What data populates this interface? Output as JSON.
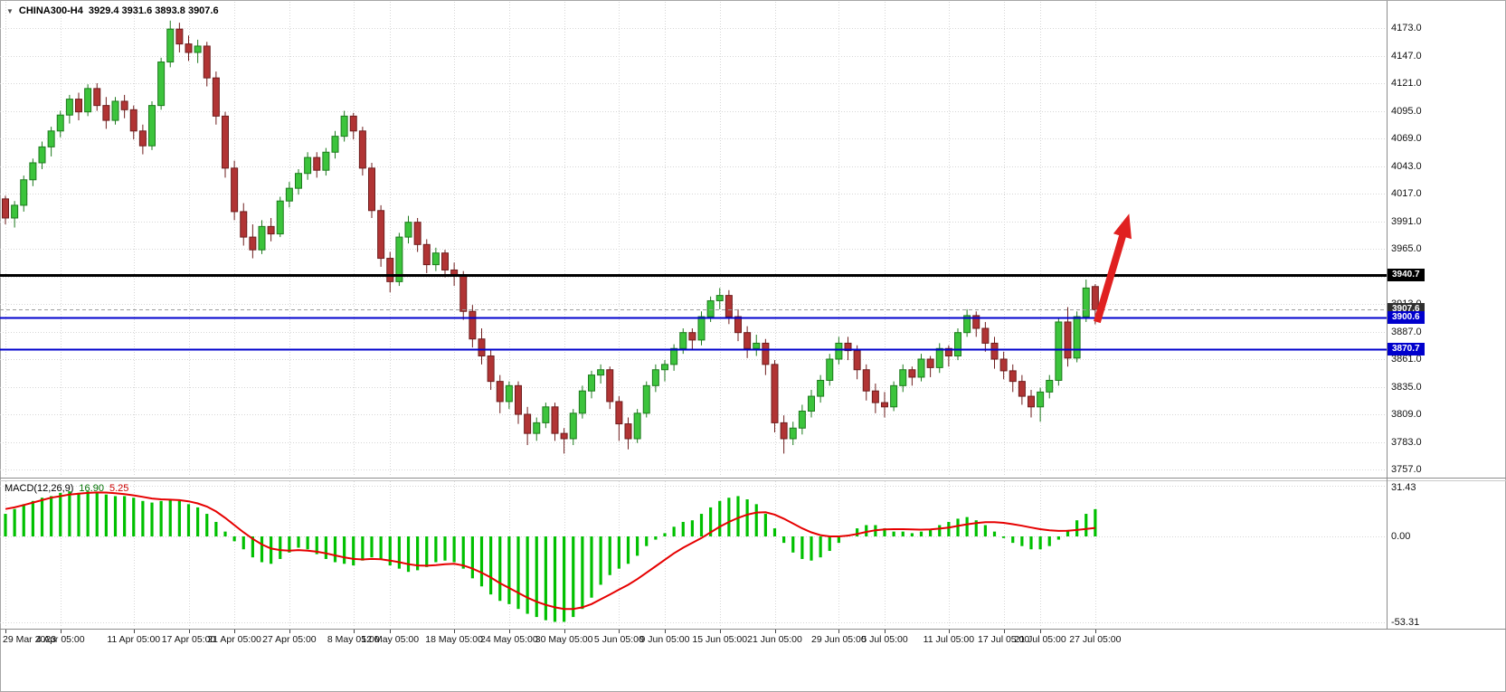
{
  "header": {
    "symbol_timeframe": "CHINA300-H4",
    "ohlc_readout": "3929.4 3931.6 3893.8 3907.6",
    "dropdown_icon": "▼"
  },
  "macd_header": {
    "label": "MACD(12,26,9)",
    "main_value": "16.90",
    "signal_value": "5.25"
  },
  "price_axis": {
    "labels": [
      "4173.0",
      "4147.0",
      "4121.0",
      "4095.0",
      "4069.0",
      "4043.0",
      "4017.0",
      "3991.0",
      "3965.0",
      "3913.0",
      "3887.0",
      "3861.0",
      "3835.0",
      "3809.0",
      "3783.0",
      "3757.0"
    ],
    "hidden_grid_levels": [
      3939.0
    ],
    "badges": [
      {
        "text": "3940.7",
        "price": 3940.7,
        "bg": "#000000",
        "fg": "#ffffff"
      },
      {
        "text": "3907.6",
        "price": 3907.6,
        "bg": "#2f2f2f",
        "fg": "#ffffff"
      },
      {
        "text": "3900.6",
        "price": 3900.6,
        "bg": "#0000cd",
        "fg": "#ffffff"
      },
      {
        "text": "3870.7",
        "price": 3870.7,
        "bg": "#0000cd",
        "fg": "#ffffff"
      }
    ]
  },
  "macd_axis": {
    "labels": [
      {
        "text": "31.43",
        "value": 31.43
      },
      {
        "text": "0.00",
        "value": 0
      },
      {
        "text": "-53.31",
        "value": -53.31
      }
    ]
  },
  "time_axis": {
    "labels": [
      {
        "text": "29 Mar 2023",
        "i": 0
      },
      {
        "text": "4 Apr 05:00",
        "i": 6
      },
      {
        "text": "11 Apr 05:00",
        "i": 14
      },
      {
        "text": "17 Apr 05:00",
        "i": 20
      },
      {
        "text": "21 Apr 05:00",
        "i": 25
      },
      {
        "text": "27 Apr 05:00",
        "i": 31
      },
      {
        "text": "8 May 05:00",
        "i": 38
      },
      {
        "text": "12 May 05:00",
        "i": 42
      },
      {
        "text": "18 May 05:00",
        "i": 49
      },
      {
        "text": "24 May 05:00",
        "i": 55
      },
      {
        "text": "30 May 05:00",
        "i": 61
      },
      {
        "text": "5 Jun 05:00",
        "i": 67
      },
      {
        "text": "9 Jun 05:00",
        "i": 72
      },
      {
        "text": "15 Jun 05:00",
        "i": 78
      },
      {
        "text": "21 Jun 05:00",
        "i": 84
      },
      {
        "text": "29 Jun 05:00",
        "i": 91
      },
      {
        "text": "5 Jul 05:00",
        "i": 96
      },
      {
        "text": "11 Jul 05:00",
        "i": 103
      },
      {
        "text": "17 Jul 05:00",
        "i": 109
      },
      {
        "text": "21 Jul 05:00",
        "i": 113
      },
      {
        "text": "27 Jul 05:00",
        "i": 119
      }
    ]
  },
  "lines": [
    {
      "name": "resistance-hline",
      "price": 3940.7,
      "color": "#000000",
      "width": 3,
      "dash": ""
    },
    {
      "name": "bid-price-line",
      "price": 3907.6,
      "color": "#9b9b9b",
      "width": 1,
      "dash": "4,3"
    },
    {
      "name": "support-hline-1",
      "price": 3900.6,
      "color": "#0000cd",
      "width": 2,
      "dash": ""
    },
    {
      "name": "support-hline-2",
      "price": 3870.7,
      "color": "#0000cd",
      "width": 2,
      "dash": ""
    }
  ],
  "annotations": [
    {
      "type": "up-arrow",
      "color": "#e02020",
      "tail_bar": 119.2,
      "tail_price": 3896,
      "head_bar": 122.7,
      "head_price": 3998
    }
  ],
  "colors": {
    "bull_fill": "#3cc43c",
    "bull_stroke": "#1d7a1d",
    "bear_fill": "#b13434",
    "bear_stroke": "#6e1d1d",
    "grid": "#d6d6d6",
    "macd_hist": "#00c000",
    "macd_signal": "#e60000",
    "axis_text": "#111111",
    "separator": "#8c8c8c",
    "tick": "#444444"
  },
  "chart_data": {
    "type": "candlestick",
    "title": "CHINA300-H4",
    "symbol": "CHINA300",
    "timeframe": "H4",
    "last_bar": {
      "open": 3929.4,
      "high": 3931.6,
      "low": 3893.8,
      "close": 3907.6
    },
    "price_axis_range": [
      3757.0,
      4173.0
    ],
    "grid_step": 26.0,
    "candles": [
      [
        4012,
        4015,
        3988,
        3994
      ],
      [
        3994,
        4010,
        3985,
        4006
      ],
      [
        4006,
        4034,
        4000,
        4030
      ],
      [
        4030,
        4050,
        4024,
        4046
      ],
      [
        4046,
        4066,
        4040,
        4061
      ],
      [
        4061,
        4080,
        4052,
        4076
      ],
      [
        4076,
        4095,
        4070,
        4091
      ],
      [
        4091,
        4110,
        4083,
        4106
      ],
      [
        4106,
        4112,
        4086,
        4094
      ],
      [
        4094,
        4120,
        4090,
        4116
      ],
      [
        4116,
        4121,
        4095,
        4100
      ],
      [
        4100,
        4108,
        4078,
        4086
      ],
      [
        4086,
        4108,
        4082,
        4104
      ],
      [
        4104,
        4110,
        4088,
        4096
      ],
      [
        4096,
        4100,
        4068,
        4076
      ],
      [
        4076,
        4082,
        4054,
        4062
      ],
      [
        4062,
        4104,
        4058,
        4100
      ],
      [
        4100,
        4145,
        4096,
        4141
      ],
      [
        4141,
        4180,
        4136,
        4172
      ],
      [
        4172,
        4178,
        4150,
        4158
      ],
      [
        4158,
        4166,
        4142,
        4150
      ],
      [
        4150,
        4162,
        4140,
        4156
      ],
      [
        4156,
        4160,
        4118,
        4126
      ],
      [
        4126,
        4132,
        4082,
        4090
      ],
      [
        4090,
        4094,
        4032,
        4041
      ],
      [
        4041,
        4048,
        3992,
        4000
      ],
      [
        4000,
        4008,
        3968,
        3976
      ],
      [
        3976,
        3988,
        3956,
        3964
      ],
      [
        3964,
        3992,
        3960,
        3986
      ],
      [
        3986,
        3994,
        3972,
        3979
      ],
      [
        3979,
        4014,
        3976,
        4010
      ],
      [
        4010,
        4028,
        4004,
        4022
      ],
      [
        4022,
        4040,
        4016,
        4036
      ],
      [
        4036,
        4056,
        4030,
        4051
      ],
      [
        4051,
        4056,
        4032,
        4039
      ],
      [
        4039,
        4060,
        4034,
        4056
      ],
      [
        4056,
        4076,
        4050,
        4071
      ],
      [
        4071,
        4095,
        4066,
        4090
      ],
      [
        4090,
        4093,
        4068,
        4076
      ],
      [
        4076,
        4080,
        4034,
        4041
      ],
      [
        4041,
        4046,
        3994,
        4001
      ],
      [
        4001,
        4006,
        3948,
        3956
      ],
      [
        3956,
        3962,
        3924,
        3934
      ],
      [
        3934,
        3980,
        3930,
        3976
      ],
      [
        3976,
        3996,
        3970,
        3990
      ],
      [
        3990,
        3994,
        3962,
        3969
      ],
      [
        3969,
        3974,
        3942,
        3950
      ],
      [
        3950,
        3966,
        3944,
        3961
      ],
      [
        3961,
        3964,
        3938,
        3945
      ],
      [
        3945,
        3952,
        3930,
        3940
      ],
      [
        3940,
        3944,
        3898,
        3906
      ],
      [
        3906,
        3912,
        3872,
        3880
      ],
      [
        3880,
        3890,
        3856,
        3864
      ],
      [
        3864,
        3870,
        3832,
        3840
      ],
      [
        3840,
        3846,
        3810,
        3821
      ],
      [
        3821,
        3840,
        3814,
        3836
      ],
      [
        3836,
        3840,
        3800,
        3809
      ],
      [
        3809,
        3816,
        3780,
        3791
      ],
      [
        3791,
        3806,
        3784,
        3801
      ],
      [
        3801,
        3820,
        3796,
        3816
      ],
      [
        3816,
        3820,
        3784,
        3791
      ],
      [
        3791,
        3796,
        3772,
        3786
      ],
      [
        3786,
        3814,
        3780,
        3810
      ],
      [
        3810,
        3836,
        3805,
        3831
      ],
      [
        3831,
        3850,
        3824,
        3846
      ],
      [
        3846,
        3856,
        3838,
        3851
      ],
      [
        3851,
        3854,
        3814,
        3821
      ],
      [
        3821,
        3826,
        3784,
        3800
      ],
      [
        3800,
        3806,
        3776,
        3786
      ],
      [
        3786,
        3814,
        3782,
        3810
      ],
      [
        3810,
        3840,
        3806,
        3836
      ],
      [
        3836,
        3856,
        3830,
        3851
      ],
      [
        3851,
        3860,
        3840,
        3856
      ],
      [
        3856,
        3875,
        3850,
        3871
      ],
      [
        3871,
        3890,
        3866,
        3886
      ],
      [
        3886,
        3890,
        3870,
        3879
      ],
      [
        3879,
        3906,
        3874,
        3901
      ],
      [
        3901,
        3920,
        3896,
        3916
      ],
      [
        3916,
        3928,
        3908,
        3921
      ],
      [
        3921,
        3926,
        3894,
        3901
      ],
      [
        3901,
        3908,
        3878,
        3886
      ],
      [
        3886,
        3892,
        3862,
        3871
      ],
      [
        3871,
        3884,
        3864,
        3876
      ],
      [
        3876,
        3880,
        3846,
        3856
      ],
      [
        3856,
        3860,
        3792,
        3801
      ],
      [
        3801,
        3808,
        3772,
        3786
      ],
      [
        3786,
        3802,
        3780,
        3796
      ],
      [
        3796,
        3818,
        3790,
        3812
      ],
      [
        3812,
        3832,
        3806,
        3826
      ],
      [
        3826,
        3846,
        3820,
        3841
      ],
      [
        3841,
        3866,
        3836,
        3861
      ],
      [
        3861,
        3882,
        3856,
        3876
      ],
      [
        3876,
        3882,
        3860,
        3869
      ],
      [
        3869,
        3874,
        3842,
        3851
      ],
      [
        3851,
        3856,
        3822,
        3831
      ],
      [
        3831,
        3838,
        3810,
        3820
      ],
      [
        3820,
        3830,
        3806,
        3816
      ],
      [
        3816,
        3840,
        3812,
        3836
      ],
      [
        3836,
        3856,
        3830,
        3851
      ],
      [
        3851,
        3854,
        3836,
        3844
      ],
      [
        3844,
        3866,
        3840,
        3861
      ],
      [
        3861,
        3864,
        3844,
        3853
      ],
      [
        3853,
        3876,
        3848,
        3871
      ],
      [
        3871,
        3874,
        3854,
        3864
      ],
      [
        3864,
        3890,
        3860,
        3886
      ],
      [
        3886,
        3908,
        3882,
        3902
      ],
      [
        3902,
        3906,
        3882,
        3890
      ],
      [
        3890,
        3896,
        3868,
        3876
      ],
      [
        3876,
        3882,
        3852,
        3861
      ],
      [
        3861,
        3868,
        3842,
        3850
      ],
      [
        3850,
        3856,
        3830,
        3840
      ],
      [
        3840,
        3846,
        3818,
        3826
      ],
      [
        3826,
        3832,
        3806,
        3816
      ],
      [
        3816,
        3834,
        3802,
        3830
      ],
      [
        3830,
        3846,
        3824,
        3841
      ],
      [
        3841,
        3900,
        3836,
        3896
      ],
      [
        3896,
        3910,
        3854,
        3862
      ],
      [
        3862,
        3906,
        3858,
        3901
      ],
      [
        3901,
        3936,
        3896,
        3928
      ],
      [
        3929.4,
        3931.6,
        3893.8,
        3907.6
      ]
    ],
    "macd": {
      "type": "bar+line",
      "params": "12,26,9",
      "range": [
        -53.31,
        31.43
      ],
      "histogram": [
        14,
        17,
        20,
        22,
        24,
        25,
        27,
        28,
        27,
        28,
        27,
        26,
        25,
        25,
        24,
        22,
        21,
        22,
        23,
        22,
        20,
        18,
        14,
        9,
        3,
        -3,
        -8,
        -13,
        -16,
        -17,
        -14,
        -10,
        -7,
        -8,
        -11,
        -14,
        -16,
        -17,
        -18,
        -15,
        -13,
        -14,
        -18,
        -20,
        -22,
        -21,
        -19,
        -16,
        -15,
        -16,
        -20,
        -26,
        -31,
        -36,
        -40,
        -42,
        -45,
        -48,
        -50,
        -52,
        -53,
        -53,
        -50,
        -45,
        -38,
        -30,
        -24,
        -20,
        -17,
        -12,
        -6,
        -2,
        2,
        6,
        9,
        10,
        14,
        18,
        22,
        24,
        25,
        23,
        20,
        14,
        5,
        -4,
        -10,
        -14,
        -15,
        -13,
        -9,
        -4,
        1,
        5,
        7,
        7,
        5,
        3,
        3,
        2,
        3,
        4,
        7,
        9,
        11,
        12,
        10,
        7,
        3,
        -1,
        -4,
        -6,
        -8,
        -8,
        -6,
        -2,
        4,
        10,
        14,
        16.9
      ],
      "signal": [
        17,
        18,
        19.5,
        21,
        22.5,
        24,
        25,
        26,
        26.5,
        27,
        27.3,
        27.2,
        26.8,
        26.2,
        25.5,
        24.5,
        23.5,
        23,
        22.8,
        22.5,
        21.8,
        20.5,
        18.5,
        15.5,
        11.5,
        7,
        2.5,
        -1.5,
        -5,
        -7.5,
        -8.5,
        -8.8,
        -8.5,
        -8.8,
        -9.5,
        -10.5,
        -11.8,
        -13,
        -14,
        -14.3,
        -14,
        -14.2,
        -15,
        -16,
        -17.2,
        -18,
        -18.2,
        -17.8,
        -17.2,
        -17,
        -18,
        -20,
        -22.5,
        -25.5,
        -29,
        -32,
        -35,
        -38,
        -40.5,
        -42.5,
        -44,
        -45,
        -45,
        -44,
        -42,
        -39,
        -36,
        -33,
        -30,
        -26.5,
        -22.5,
        -18.5,
        -14.5,
        -10.5,
        -7,
        -4,
        -1,
        2.5,
        6,
        9,
        11.5,
        13.5,
        14.8,
        15,
        13.5,
        11,
        8,
        5,
        2.5,
        0.8,
        0,
        0,
        0.5,
        1.5,
        2.8,
        3.8,
        4.3,
        4.5,
        4.5,
        4.3,
        4.2,
        4.3,
        4.8,
        5.5,
        6.5,
        7.5,
        8.3,
        8.8,
        8.8,
        8.4,
        7.6,
        6.6,
        5.5,
        4.5,
        3.8,
        3.4,
        3.5,
        4,
        4.6,
        5.25
      ]
    }
  }
}
